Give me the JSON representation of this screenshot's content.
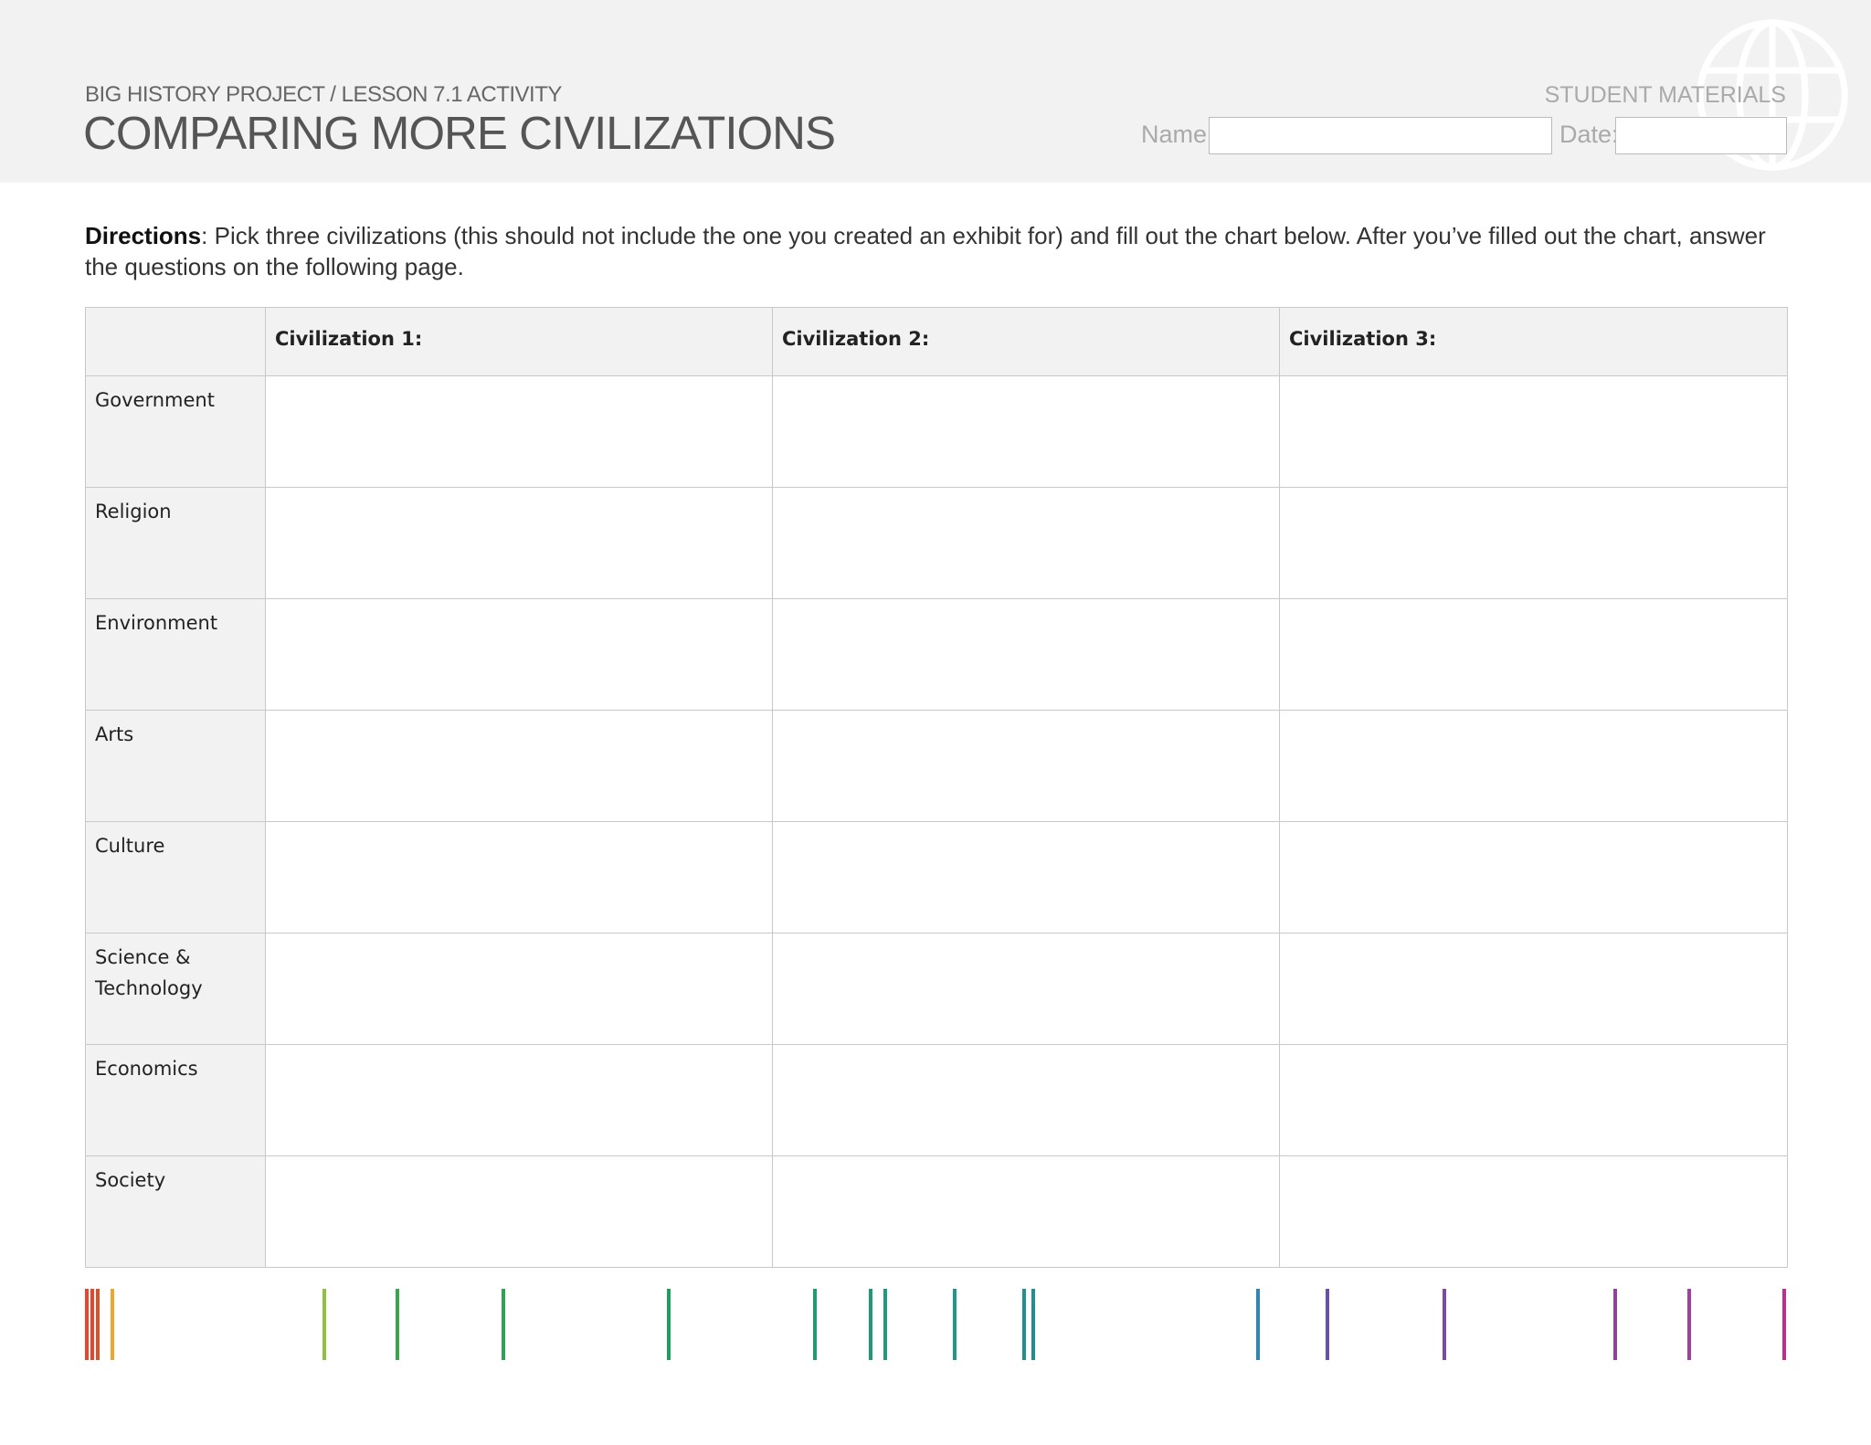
{
  "header": {
    "kicker": "BIG HISTORY PROJECT / LESSON 7.1 ACTIVITY",
    "title": "COMPARING MORE CIVILIZATIONS",
    "materials": "STUDENT MATERIALS",
    "name_label": "Name:",
    "date_label": "Date:",
    "name_value": "",
    "date_value": "",
    "logo_icon": "globe-icon"
  },
  "directions": {
    "lead": "Directions",
    "text": ": Pick three civilizations (this should not include the one you created an exhibit for) and fill out the chart below. After you’ve filled out the chart, answer the questions on the following page."
  },
  "table": {
    "columns": [
      "",
      "Civilization 1:",
      "Civilization 2:",
      "Civilization 3:"
    ],
    "rows": [
      {
        "label": "Government",
        "cells": [
          "",
          "",
          ""
        ]
      },
      {
        "label": "Religion",
        "cells": [
          "",
          "",
          ""
        ]
      },
      {
        "label": "Environment",
        "cells": [
          "",
          "",
          ""
        ]
      },
      {
        "label": "Arts",
        "cells": [
          "",
          "",
          ""
        ]
      },
      {
        "label": "Culture",
        "cells": [
          "",
          "",
          ""
        ]
      },
      {
        "label": "Science & Technology",
        "cells": [
          "",
          "",
          ""
        ]
      },
      {
        "label": "Economics",
        "cells": [
          "",
          "",
          ""
        ]
      },
      {
        "label": "Society",
        "cells": [
          "",
          "",
          ""
        ]
      }
    ]
  },
  "colors": {
    "header_bg": "#f2f2f2",
    "timeline": [
      "#e8452f",
      "#d6512c",
      "#f0a431",
      "#8dc13f",
      "#3aa64a",
      "#2ea356",
      "#1f9e5d",
      "#1f9b6e",
      "#1e9a78",
      "#1e9b7e",
      "#1f9889",
      "#1f9290",
      "#1d8f95",
      "#2a87b7",
      "#6a4fa9",
      "#7b4aa6",
      "#8c4398",
      "#a23ea0",
      "#c12c8f"
    ]
  }
}
